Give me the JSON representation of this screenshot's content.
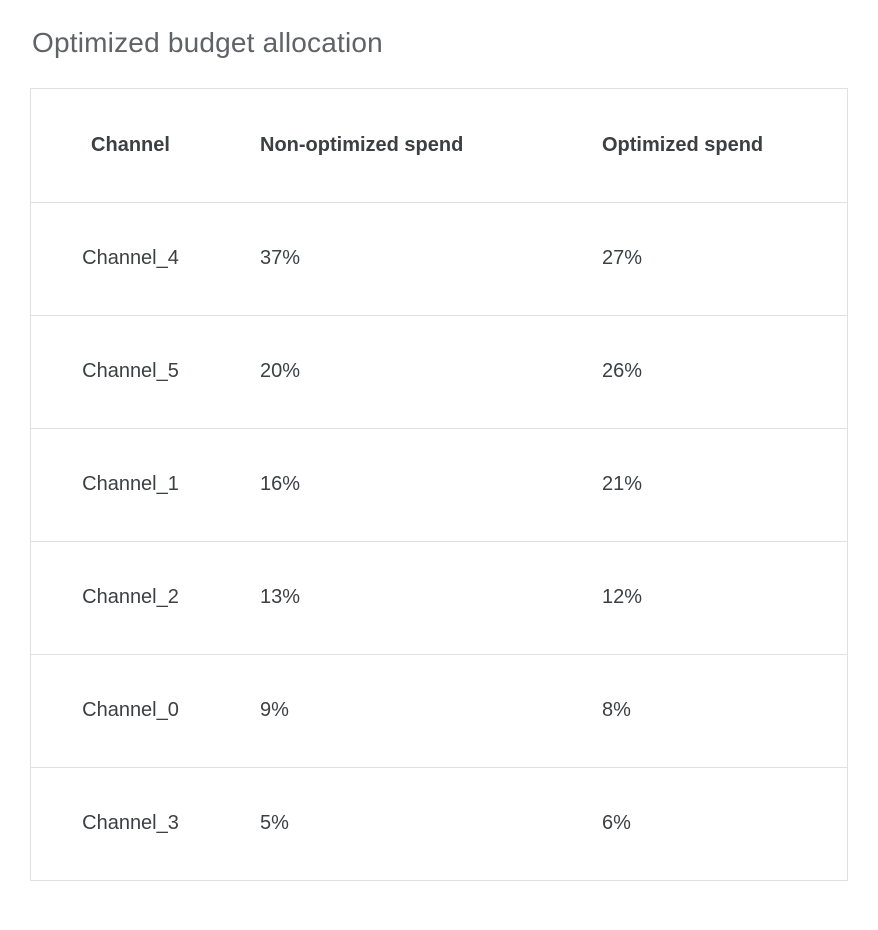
{
  "page": {
    "title": "Optimized budget allocation"
  },
  "table": {
    "headers": [
      "Channel",
      "Non-optimized spend",
      "Optimized spend"
    ],
    "rows": [
      {
        "channel": "Channel_4",
        "non_optimized": "37%",
        "optimized": "27%"
      },
      {
        "channel": "Channel_5",
        "non_optimized": "20%",
        "optimized": "26%"
      },
      {
        "channel": "Channel_1",
        "non_optimized": "16%",
        "optimized": "21%"
      },
      {
        "channel": "Channel_2",
        "non_optimized": "13%",
        "optimized": "12%"
      },
      {
        "channel": "Channel_0",
        "non_optimized": "9%",
        "optimized": "8%"
      },
      {
        "channel": "Channel_3",
        "non_optimized": "5%",
        "optimized": "6%"
      }
    ]
  },
  "chart_data": {
    "type": "table",
    "title": "Optimized budget allocation",
    "columns": [
      "Channel",
      "Non-optimized spend",
      "Optimized spend"
    ],
    "rows": [
      [
        "Channel_4",
        "37%",
        "27%"
      ],
      [
        "Channel_5",
        "20%",
        "26%"
      ],
      [
        "Channel_1",
        "16%",
        "21%"
      ],
      [
        "Channel_2",
        "13%",
        "12%"
      ],
      [
        "Channel_0",
        "9%",
        "8%"
      ],
      [
        "Channel_3",
        "5%",
        "6%"
      ]
    ],
    "series": [
      {
        "name": "Non-optimized spend",
        "categories": [
          "Channel_4",
          "Channel_5",
          "Channel_1",
          "Channel_2",
          "Channel_0",
          "Channel_3"
        ],
        "values": [
          37,
          20,
          16,
          13,
          9,
          5
        ],
        "unit": "%"
      },
      {
        "name": "Optimized spend",
        "categories": [
          "Channel_4",
          "Channel_5",
          "Channel_1",
          "Channel_2",
          "Channel_0",
          "Channel_3"
        ],
        "values": [
          27,
          26,
          21,
          12,
          8,
          6
        ],
        "unit": "%"
      }
    ]
  },
  "colors": {
    "title_text": "#5f6368",
    "body_text": "#3c4043",
    "border": "#e0e0e0",
    "background": "#ffffff"
  }
}
